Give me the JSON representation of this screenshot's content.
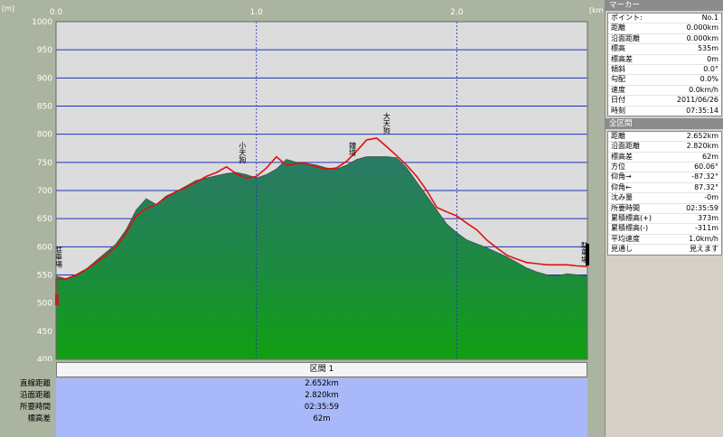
{
  "chart_data": {
    "type": "area",
    "y_unit": "[m]",
    "x_unit": "[km]",
    "xlim": [
      0,
      2.652
    ],
    "ylim": [
      400,
      1000
    ],
    "x_ticks": [
      "0.0",
      "1.0",
      "2.0"
    ],
    "y_ticks": [
      "1000",
      "950",
      "900",
      "850",
      "800",
      "750",
      "700",
      "650",
      "600",
      "550",
      "500",
      "450",
      "400"
    ],
    "grid": true,
    "series": [
      {
        "type": "area",
        "color": "#2e8a5e",
        "x": [
          0,
          0.05,
          0.1,
          0.15,
          0.2,
          0.25,
          0.3,
          0.35,
          0.4,
          0.45,
          0.5,
          0.55,
          0.6,
          0.65,
          0.7,
          0.75,
          0.8,
          0.85,
          0.9,
          0.95,
          1.0,
          1.05,
          1.1,
          1.15,
          1.2,
          1.25,
          1.3,
          1.35,
          1.4,
          1.45,
          1.5,
          1.55,
          1.6,
          1.65,
          1.7,
          1.75,
          1.8,
          1.85,
          1.9,
          1.95,
          2.0,
          2.05,
          2.1,
          2.15,
          2.2,
          2.25,
          2.3,
          2.35,
          2.4,
          2.45,
          2.5,
          2.55,
          2.6,
          2.652
        ],
        "y": [
          548,
          543,
          548,
          560,
          575,
          590,
          605,
          630,
          665,
          685,
          675,
          690,
          698,
          708,
          718,
          722,
          726,
          730,
          732,
          728,
          722,
          728,
          738,
          755,
          750,
          748,
          745,
          740,
          738,
          745,
          755,
          760,
          760,
          760,
          758,
          740,
          715,
          690,
          665,
          640,
          625,
          612,
          605,
          598,
          590,
          582,
          572,
          562,
          555,
          550,
          548,
          552,
          550,
          548
        ]
      },
      {
        "type": "line",
        "color": "#e01010",
        "x": [
          0,
          0.05,
          0.1,
          0.15,
          0.2,
          0.25,
          0.3,
          0.35,
          0.4,
          0.45,
          0.5,
          0.55,
          0.6,
          0.65,
          0.7,
          0.75,
          0.8,
          0.85,
          0.9,
          0.95,
          1.0,
          1.05,
          1.1,
          1.15,
          1.2,
          1.25,
          1.3,
          1.35,
          1.4,
          1.45,
          1.5,
          1.55,
          1.6,
          1.65,
          1.7,
          1.75,
          1.8,
          1.85,
          1.9,
          1.95,
          2.0,
          2.05,
          2.1,
          2.15,
          2.2,
          2.25,
          2.3,
          2.35,
          2.4,
          2.45,
          2.5,
          2.55,
          2.6,
          2.652
        ],
        "y": [
          542,
          543,
          550,
          560,
          572,
          585,
          600,
          625,
          655,
          668,
          675,
          688,
          698,
          706,
          715,
          725,
          732,
          742,
          730,
          722,
          725,
          740,
          760,
          745,
          748,
          748,
          742,
          738,
          740,
          752,
          770,
          790,
          793,
          778,
          762,
          745,
          725,
          700,
          670,
          662,
          655,
          642,
          630,
          612,
          598,
          585,
          578,
          572,
          570,
          568,
          568,
          568,
          566,
          565
        ]
      }
    ],
    "annotations": [
      {
        "text": "駐車場",
        "x": 0.0,
        "y": 560
      },
      {
        "text": "小天狗",
        "x": 0.93,
        "y": 745
      },
      {
        "text": "鐘塔",
        "x": 1.48,
        "y": 758
      },
      {
        "text": "大天狗",
        "x": 1.65,
        "y": 797
      },
      {
        "text": "駐車場",
        "x": 2.652,
        "y": 568
      }
    ]
  },
  "section": {
    "header": "区間 1",
    "rows": [
      {
        "label": "直線距離",
        "value": "2.652km"
      },
      {
        "label": "沿面距離",
        "value": "2.820km"
      },
      {
        "label": "所要時間",
        "value": "02:35:59"
      },
      {
        "label": "標高差",
        "value": "62m"
      }
    ]
  },
  "panel": {
    "marker_title": "マーカー",
    "marker_rows": [
      {
        "label": "ポイント:",
        "value": "No.1"
      },
      {
        "label": "距離",
        "value": "0.000km"
      },
      {
        "label": "沿面距離",
        "value": "0.000km"
      },
      {
        "label": "標高",
        "value": "535m"
      },
      {
        "label": "標高差",
        "value": "0m"
      },
      {
        "label": "傾斜",
        "value": "0.0°"
      },
      {
        "label": "勾配",
        "value": "0.0%"
      },
      {
        "label": "速度",
        "value": "0.0km/h"
      },
      {
        "label": "日付",
        "value": "2011/06/26"
      },
      {
        "label": "時刻",
        "value": "07:35:14"
      }
    ],
    "total_title": "全区間",
    "total_rows": [
      {
        "label": "距離",
        "value": "2.652km"
      },
      {
        "label": "沿面距離",
        "value": "2.820km"
      },
      {
        "label": "標高差",
        "value": "62m"
      },
      {
        "label": "方位",
        "value": "60.06°"
      },
      {
        "label": "仰角→",
        "value": "-87.32°"
      },
      {
        "label": "仰角←",
        "value": "87.32°"
      },
      {
        "label": "沈み量",
        "value": "-0m"
      },
      {
        "label": "所要時間",
        "value": "02:35:59"
      },
      {
        "label": "累積標高(+)",
        "value": "373m"
      },
      {
        "label": "累積標高(-)",
        "value": "-311m"
      },
      {
        "label": "平均速度",
        "value": "1.0km/h"
      },
      {
        "label": "見通し",
        "value": "見えます"
      }
    ]
  }
}
